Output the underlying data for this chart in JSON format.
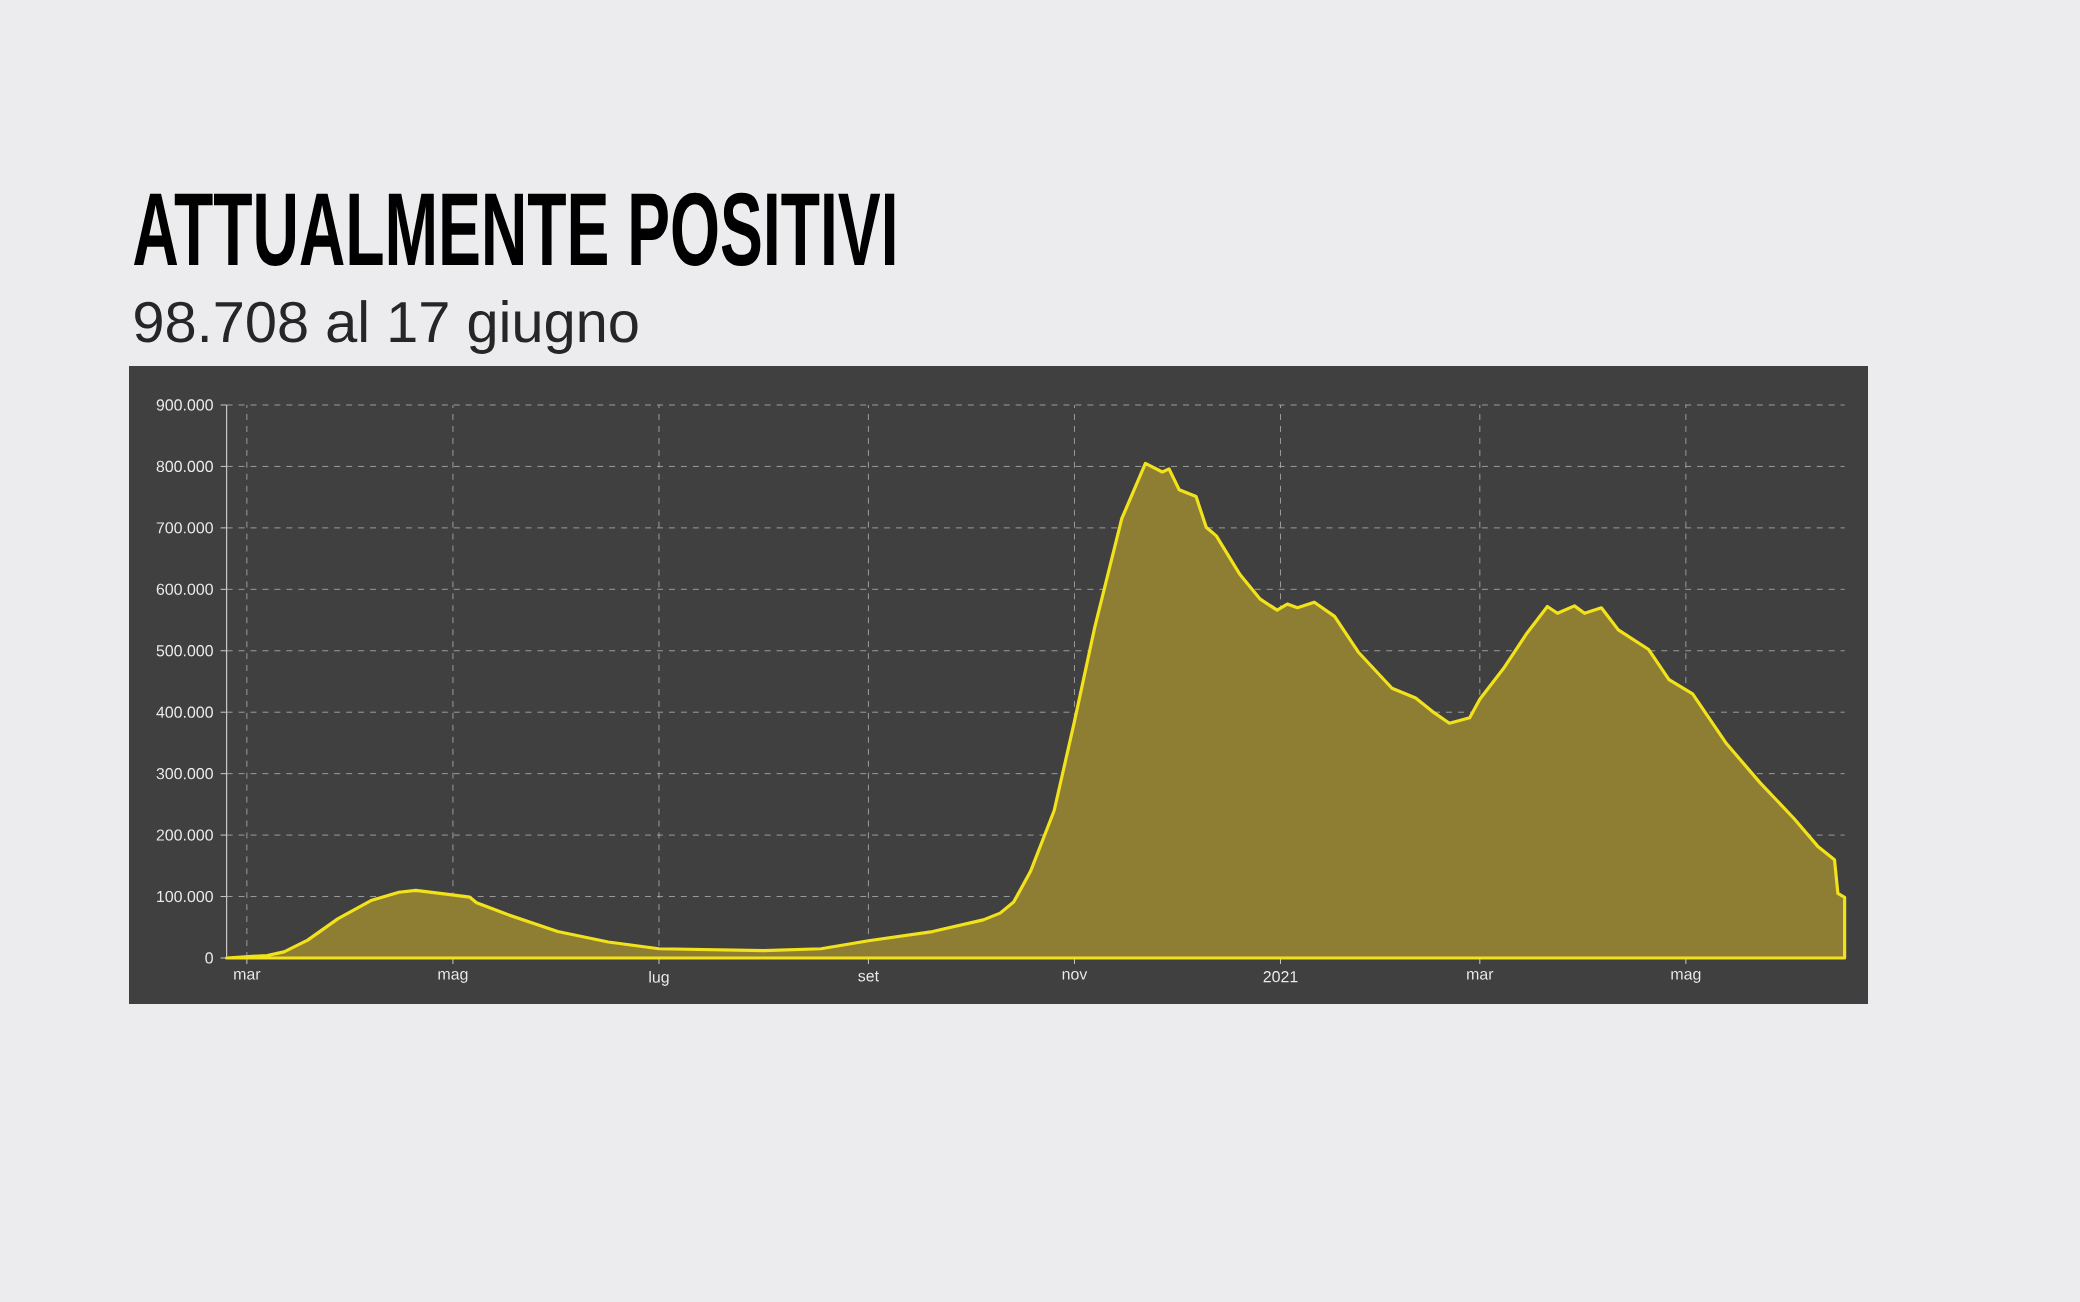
{
  "chart_data": {
    "type": "area",
    "title": "ATTUALMENTE POSITIVI",
    "subtitle": "98.708 al 17 giugno",
    "x": [
      "2020-02-24",
      "2020-03-07",
      "2020-03-12",
      "2020-03-19",
      "2020-03-28",
      "2020-04-07",
      "2020-04-15",
      "2020-04-20",
      "2020-04-29",
      "2020-05-06",
      "2020-05-08",
      "2020-05-17",
      "2020-06-01",
      "2020-06-16",
      "2020-07-01",
      "2020-08-01",
      "2020-08-18",
      "2020-09-01",
      "2020-09-20",
      "2020-10-05",
      "2020-10-10",
      "2020-10-14",
      "2020-10-19",
      "2020-10-26",
      "2020-11-01",
      "2020-11-07",
      "2020-11-15",
      "2020-11-22",
      "2020-11-27",
      "2020-11-29",
      "2020-12-02",
      "2020-12-07",
      "2020-12-10",
      "2020-12-13",
      "2020-12-20",
      "2020-12-26",
      "2020-12-31",
      "2021-01-03",
      "2021-01-06",
      "2021-01-11",
      "2021-01-17",
      "2021-01-24",
      "2021-02-03",
      "2021-02-10",
      "2021-02-15",
      "2021-02-20",
      "2021-02-26",
      "2021-03-01",
      "2021-03-08",
      "2021-03-15",
      "2021-03-21",
      "2021-03-24",
      "2021-03-29",
      "2021-04-01",
      "2021-04-06",
      "2021-04-11",
      "2021-04-20",
      "2021-04-26",
      "2021-05-03",
      "2021-05-13",
      "2021-05-23",
      "2021-06-02",
      "2021-06-09",
      "2021-06-14",
      "2021-06-15",
      "2021-06-17"
    ],
    "series": [
      {
        "color": "#f2e21b",
        "values": [
          0,
          4000,
          10000,
          29000,
          64000,
          94000,
          107000,
          110000,
          104000,
          99000,
          90000,
          71000,
          43000,
          26000,
          15000,
          12000,
          15000,
          28000,
          43000,
          62000,
          73000,
          91000,
          141000,
          240000,
          385000,
          538000,
          715000,
          805000,
          791000,
          796000,
          762000,
          751000,
          701000,
          687000,
          624000,
          584000,
          566000,
          576000,
          570000,
          579000,
          556000,
          498000,
          439000,
          423000,
          401000,
          382000,
          391000,
          421000,
          471000,
          529000,
          572000,
          561000,
          573000,
          561000,
          570000,
          534000,
          502000,
          453000,
          430000,
          349000,
          285000,
          227000,
          182000,
          160000,
          105000,
          98708
        ]
      }
    ],
    "xlim": [
      "2020-02-24",
      "2021-06-17"
    ],
    "ylim": [
      0,
      900000
    ],
    "xticks": [
      {
        "value": "2020-03-01",
        "label": "mar"
      },
      {
        "value": "2020-05-01",
        "label": "mag"
      },
      {
        "value": "2020-07-01",
        "label": "lug"
      },
      {
        "value": "2020-09-01",
        "label": "set"
      },
      {
        "value": "2020-11-01",
        "label": "nov"
      },
      {
        "value": "2021-01-01",
        "label": "2021"
      },
      {
        "value": "2021-03-01",
        "label": "mar"
      },
      {
        "value": "2021-05-01",
        "label": "mag"
      }
    ],
    "yticks": [
      0,
      {
        "value": 100000,
        "label": "100.000"
      },
      {
        "value": 200000,
        "label": "200.000"
      },
      {
        "value": 300000,
        "label": "300.000"
      },
      {
        "value": 400000,
        "label": "400.000"
      },
      {
        "value": 500000,
        "label": "500.000"
      },
      {
        "value": 600000,
        "label": "600.000"
      },
      {
        "value": 700000,
        "label": "700.000"
      },
      {
        "value": 800000,
        "label": "800.000"
      },
      {
        "value": 900000,
        "label": "900.000"
      }
    ],
    "grid": true
  }
}
